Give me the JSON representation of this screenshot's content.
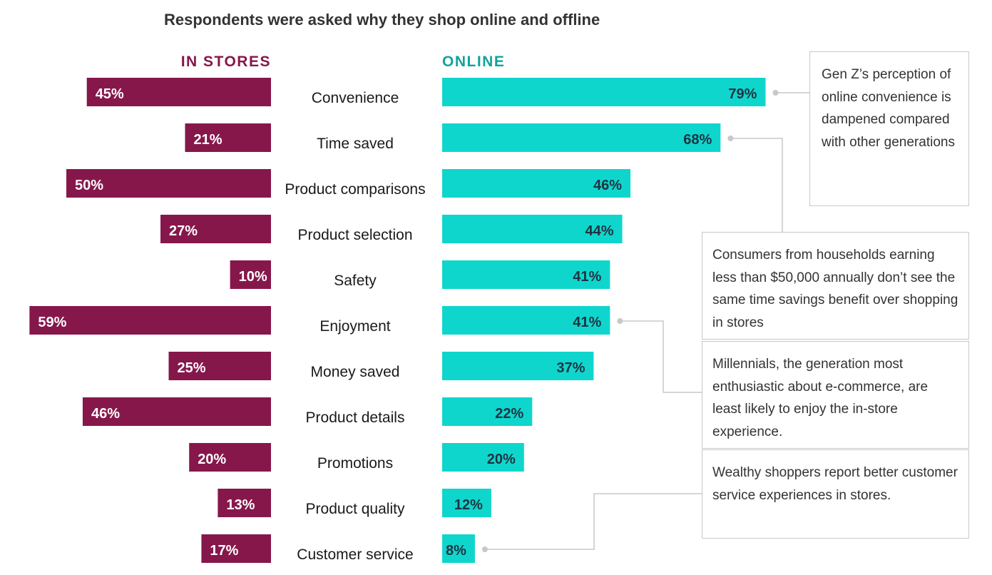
{
  "chart_data": {
    "type": "bar",
    "title": "Respondents were asked why they shop online and offline",
    "categories": [
      "Convenience",
      "Time saved",
      "Product comparisons",
      "Product selection",
      "Safety",
      "Enjoyment",
      "Money saved",
      "Product details",
      "Promotions",
      "Product quality",
      "Customer service"
    ],
    "series": [
      {
        "name": "IN STORES",
        "values": [
          45,
          21,
          50,
          27,
          10,
          59,
          25,
          46,
          20,
          13,
          17
        ],
        "labels": [
          "45%",
          "21%",
          "50%",
          "27%",
          "10%",
          "59%",
          "25%",
          "46%",
          "20%",
          "13%",
          "17%"
        ],
        "color": "#86174b"
      },
      {
        "name": "ONLINE",
        "values": [
          79,
          68,
          46,
          44,
          41,
          41,
          37,
          22,
          20,
          12,
          8
        ],
        "labels": [
          "79%",
          "68%",
          "46%",
          "44%",
          "41%",
          "41%",
          "37%",
          "22%",
          "20%",
          "12%",
          "8%"
        ],
        "color": "#0fd6cd"
      }
    ],
    "annotations": [
      {
        "target": "Convenience",
        "text": "Gen Z’s perception of online convenience is dampened compared with other generations"
      },
      {
        "target": "Time saved",
        "text": "Consumers from households earning less than $50,000 annually don’t see the same time savings benefit over shopping in stores"
      },
      {
        "target": "Enjoyment",
        "text": "Millennials, the generation most enthusiastic about e-commerce, are least likely to enjoy the in-store experience."
      },
      {
        "target": "Customer service",
        "text": "Wealthy shoppers report better customer service experiences in stores."
      }
    ],
    "xlabel": "",
    "ylabel": "",
    "xlim": [
      0,
      100
    ]
  },
  "colors": {
    "store_text": "#86174b",
    "online_text": "#12a39c",
    "label_dark": "#1f3340",
    "connector": "#c8c8c8"
  }
}
